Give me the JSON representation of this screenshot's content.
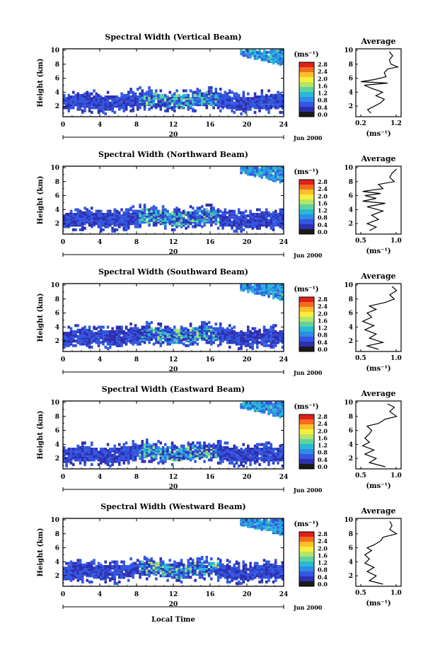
{
  "figure": {
    "x_axis_label": "Local Time",
    "date_label": "Jun 2000",
    "day_label": "20",
    "y_axis_label": "Height (km)",
    "colorbar_unit": "(ms⁻¹)",
    "profile_title": "Average",
    "profile_unit": "(ms⁻¹)"
  },
  "colorbar": {
    "ticks": [
      "2.8",
      "2.4",
      "2.0",
      "1.6",
      "1.2",
      "0.8",
      "0.4",
      "0.0"
    ],
    "colors": [
      "#e0201a",
      "#f46d1e",
      "#ffbf2b",
      "#f7ef3c",
      "#b5e46a",
      "#5fd39d",
      "#27b9d6",
      "#2e8be6",
      "#3357e0",
      "#2f2fb0",
      "#1a1a1a"
    ]
  },
  "chart_data": [
    {
      "type": "heatmap",
      "title": "Spectral Width (Vertical Beam)",
      "x": {
        "label": "Local Time",
        "ticks": [
          0,
          4,
          8,
          12,
          16,
          20,
          24
        ],
        "lim": [
          0,
          24
        ]
      },
      "y": {
        "label": "Height (km)",
        "ticks": [
          2,
          4,
          6,
          8,
          10
        ],
        "lim": [
          0.5,
          10.2
        ]
      },
      "profile": {
        "title": "Average",
        "xlabel": "(ms⁻¹)",
        "xticks": [
          "0.2",
          "1.2"
        ],
        "xlim": [
          0.0,
          1.35
        ],
        "points": [
          [
            0.45,
            1.0
          ],
          [
            0.35,
            1.5
          ],
          [
            0.55,
            2.0
          ],
          [
            0.75,
            2.5
          ],
          [
            0.85,
            3.0
          ],
          [
            0.6,
            3.5
          ],
          [
            0.8,
            4.0
          ],
          [
            0.5,
            4.5
          ],
          [
            0.25,
            5.0
          ],
          [
            0.95,
            5.3
          ],
          [
            0.15,
            5.5
          ],
          [
            0.55,
            5.8
          ],
          [
            0.9,
            6.2
          ],
          [
            0.85,
            6.8
          ],
          [
            0.95,
            7.3
          ],
          [
            1.25,
            7.6
          ],
          [
            1.05,
            8.0
          ],
          [
            1.0,
            8.6
          ],
          [
            1.1,
            9.2
          ],
          [
            1.0,
            9.8
          ]
        ]
      }
    },
    {
      "type": "heatmap",
      "title": "Spectral Width (Northward Beam)",
      "x": {
        "label": "Local Time",
        "ticks": [
          0,
          4,
          8,
          12,
          16,
          20,
          24
        ],
        "lim": [
          0,
          24
        ]
      },
      "y": {
        "label": "Height (km)",
        "ticks": [
          2,
          4,
          6,
          8,
          10
        ],
        "lim": [
          0.5,
          10.2
        ]
      },
      "profile": {
        "title": "Average",
        "xlabel": "(ms⁻¹)",
        "xticks": [
          "0.5",
          "1.0"
        ],
        "xlim": [
          0.3,
          1.3
        ],
        "points": [
          [
            0.6,
            1.0
          ],
          [
            0.75,
            1.5
          ],
          [
            0.55,
            2.0
          ],
          [
            0.8,
            2.6
          ],
          [
            0.65,
            3.2
          ],
          [
            0.9,
            3.8
          ],
          [
            0.55,
            4.4
          ],
          [
            0.95,
            4.9
          ],
          [
            0.45,
            5.2
          ],
          [
            0.75,
            5.6
          ],
          [
            0.5,
            6.0
          ],
          [
            0.85,
            6.3
          ],
          [
            0.45,
            6.6
          ],
          [
            0.9,
            7.0
          ],
          [
            0.8,
            7.6
          ],
          [
            1.15,
            8.0
          ],
          [
            1.05,
            8.6
          ],
          [
            1.1,
            9.2
          ],
          [
            1.2,
            9.8
          ]
        ]
      }
    },
    {
      "type": "heatmap",
      "title": "Spectral Width (Southward Beam)",
      "x": {
        "label": "Local Time",
        "ticks": [
          0,
          4,
          8,
          12,
          16,
          20,
          24
        ],
        "lim": [
          0,
          24
        ]
      },
      "y": {
        "label": "Height (km)",
        "ticks": [
          2,
          4,
          6,
          8,
          10
        ],
        "lim": [
          0.5,
          10.2
        ]
      },
      "profile": {
        "title": "Average",
        "xlabel": "(ms⁻¹)",
        "xticks": [
          "0.5",
          "1.0"
        ],
        "xlim": [
          0.3,
          1.3
        ],
        "points": [
          [
            0.8,
            0.8
          ],
          [
            0.55,
            1.3
          ],
          [
            0.9,
            1.8
          ],
          [
            0.6,
            2.4
          ],
          [
            0.75,
            3.0
          ],
          [
            0.5,
            3.6
          ],
          [
            0.7,
            4.2
          ],
          [
            0.45,
            4.8
          ],
          [
            0.65,
            5.4
          ],
          [
            0.55,
            6.0
          ],
          [
            0.75,
            6.5
          ],
          [
            0.6,
            7.0
          ],
          [
            0.95,
            7.5
          ],
          [
            1.15,
            8.0
          ],
          [
            1.05,
            8.6
          ],
          [
            1.2,
            9.2
          ],
          [
            1.1,
            9.8
          ]
        ]
      }
    },
    {
      "type": "heatmap",
      "title": "Spectral Width (Eastward Beam)",
      "x": {
        "label": "Local Time",
        "ticks": [
          0,
          4,
          8,
          12,
          16,
          20,
          24
        ],
        "lim": [
          0,
          24
        ]
      },
      "y": {
        "label": "Height (km)",
        "ticks": [
          2,
          4,
          6,
          8,
          10
        ],
        "lim": [
          0.5,
          10.2
        ]
      },
      "profile": {
        "title": "Average",
        "xlabel": "(ms⁻¹)",
        "xticks": [
          "0.5",
          "1.0"
        ],
        "xlim": [
          0.3,
          1.3
        ],
        "points": [
          [
            0.95,
            0.8
          ],
          [
            0.6,
            1.4
          ],
          [
            0.75,
            2.0
          ],
          [
            0.5,
            2.6
          ],
          [
            0.7,
            3.2
          ],
          [
            0.45,
            3.8
          ],
          [
            0.6,
            4.3
          ],
          [
            0.5,
            4.9
          ],
          [
            0.6,
            5.5
          ],
          [
            0.65,
            6.0
          ],
          [
            0.55,
            6.6
          ],
          [
            0.8,
            7.0
          ],
          [
            0.95,
            7.6
          ],
          [
            1.2,
            8.0
          ],
          [
            1.05,
            8.7
          ],
          [
            1.15,
            9.3
          ],
          [
            1.0,
            9.8
          ]
        ]
      }
    },
    {
      "type": "heatmap",
      "title": "Spectral Width (Westward Beam)",
      "x": {
        "label": "Local Time",
        "ticks": [
          0,
          4,
          8,
          12,
          16,
          20,
          24
        ],
        "lim": [
          0,
          24
        ]
      },
      "y": {
        "label": "Height (km)",
        "ticks": [
          2,
          4,
          6,
          8,
          10
        ],
        "lim": [
          0.5,
          10.2
        ]
      },
      "profile": {
        "title": "Average",
        "xlabel": "(ms⁻¹)",
        "xticks": [
          "0.5",
          "1.0"
        ],
        "xlim": [
          0.3,
          1.3
        ],
        "points": [
          [
            0.9,
            0.8
          ],
          [
            0.6,
            1.3
          ],
          [
            0.75,
            2.0
          ],
          [
            0.55,
            2.6
          ],
          [
            0.7,
            3.2
          ],
          [
            0.5,
            3.8
          ],
          [
            0.6,
            4.4
          ],
          [
            0.5,
            5.0
          ],
          [
            0.65,
            5.6
          ],
          [
            0.55,
            6.0
          ],
          [
            0.7,
            6.4
          ],
          [
            0.85,
            7.0
          ],
          [
            0.9,
            7.5
          ],
          [
            1.2,
            8.0
          ],
          [
            1.05,
            8.6
          ],
          [
            1.1,
            9.2
          ],
          [
            1.05,
            9.8
          ]
        ]
      }
    }
  ]
}
